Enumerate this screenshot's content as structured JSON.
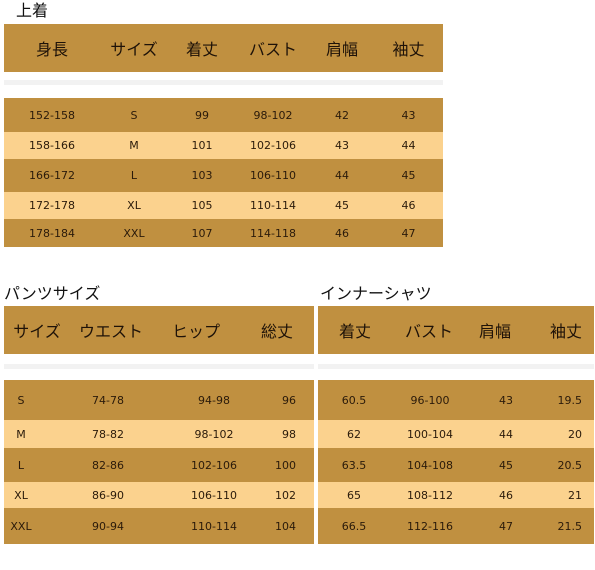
{
  "jacket": {
    "title": "上着",
    "headers": [
      "身長",
      "サイズ",
      "着丈",
      "バスト",
      "肩幅",
      "袖丈"
    ],
    "rows": [
      [
        "152-158",
        "S",
        "99",
        "98-102",
        "42",
        "43"
      ],
      [
        "158-166",
        "M",
        "101",
        "102-106",
        "43",
        "44"
      ],
      [
        "166-172",
        "L",
        "103",
        "106-110",
        "44",
        "45"
      ],
      [
        "172-178",
        "XL",
        "105",
        "110-114",
        "45",
        "46"
      ],
      [
        "178-184",
        "XXL",
        "107",
        "114-118",
        "46",
        "47"
      ]
    ]
  },
  "pants": {
    "title": "パンツサイズ",
    "headers": [
      "サイズ",
      "ウエスト",
      "ヒップ",
      "総丈"
    ],
    "rows": [
      [
        "S",
        "74-78",
        "94-98",
        "96"
      ],
      [
        "M",
        "78-82",
        "98-102",
        "98"
      ],
      [
        "L",
        "82-86",
        "102-106",
        "100"
      ],
      [
        "XL",
        "86-90",
        "106-110",
        "102"
      ],
      [
        "XXL",
        "90-94",
        "110-114",
        "104"
      ]
    ]
  },
  "inner": {
    "title": "インナーシャツ",
    "headers": [
      "着丈",
      "バスト",
      "肩幅",
      "袖丈"
    ],
    "rows": [
      [
        "60.5",
        "96-100",
        "43",
        "19.5"
      ],
      [
        "62",
        "100-104",
        "44",
        "20"
      ],
      [
        "63.5",
        "104-108",
        "45",
        "20.5"
      ],
      [
        "65",
        "108-112",
        "46",
        "21"
      ],
      [
        "66.5",
        "112-116",
        "47",
        "21.5"
      ]
    ]
  },
  "colors": {
    "header": "#c09040",
    "row_dark": "#c09040",
    "row_light": "#fbd28e"
  }
}
